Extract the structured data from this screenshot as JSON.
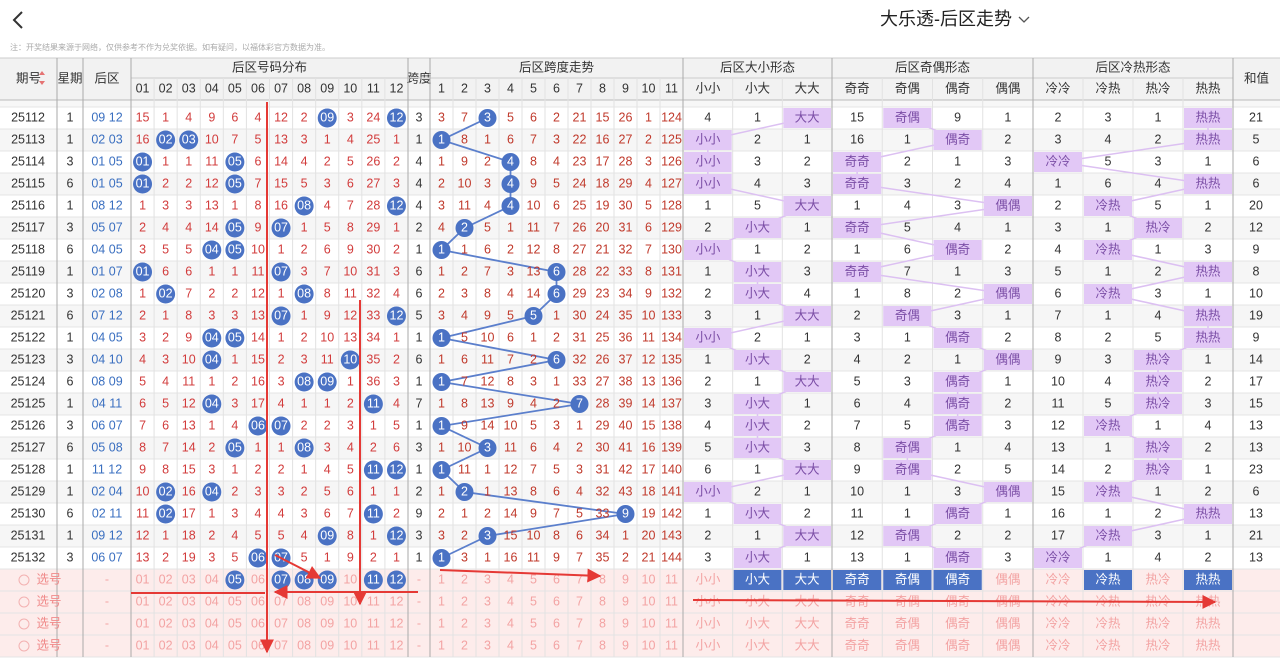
{
  "header": {
    "title": "大乐透-后区走势",
    "note": "注：开奖结果来源于网络，仅供参考不作为兑奖依据。如有疑问，以福体彩官方数据为准。"
  },
  "table": {
    "columns": {
      "issue": "期号",
      "week": "星期",
      "back": "后区",
      "dist": "后区号码分布",
      "span": "跨度",
      "trend": "后区跨度走势",
      "size": "后区大小形态",
      "parity": "后区奇偶形态",
      "heat": "后区冷热形态",
      "sum": "和值"
    },
    "dist_labels": [
      "01",
      "02",
      "03",
      "04",
      "05",
      "06",
      "07",
      "08",
      "09",
      "10",
      "11",
      "12"
    ],
    "trend_labels": [
      "1",
      "2",
      "3",
      "4",
      "5",
      "6",
      "7",
      "8",
      "9",
      "10",
      "11"
    ],
    "size_labels": [
      "小小",
      "小大",
      "大大"
    ],
    "parity_labels": [
      "奇奇",
      "奇偶",
      "偶奇",
      "偶偶"
    ],
    "heat_labels": [
      "冷冷",
      "冷热",
      "热冷",
      "热热"
    ],
    "rows": [
      {
        "issue": "25112",
        "week": "1",
        "back": "09 12",
        "dist": [
          15,
          1,
          4,
          9,
          6,
          4,
          12,
          2,
          "09",
          3,
          24,
          "12"
        ],
        "span": 3,
        "trend": [
          3,
          7,
          3,
          5,
          6,
          2,
          21,
          15,
          26,
          1,
          124
        ],
        "size": [
          4,
          1,
          "大大"
        ],
        "parity": [
          15,
          "奇偶",
          9,
          1
        ],
        "heat": [
          2,
          3,
          1,
          "热热"
        ],
        "sum": 21
      },
      {
        "issue": "25113",
        "week": "1",
        "back": "02 03",
        "dist": [
          16,
          "02",
          "03",
          10,
          7,
          5,
          13,
          3,
          1,
          4,
          25,
          1
        ],
        "span": 1,
        "trend": [
          1,
          8,
          1,
          6,
          7,
          3,
          22,
          16,
          27,
          2,
          125
        ],
        "size": [
          "小小",
          2,
          1
        ],
        "parity": [
          16,
          1,
          "偶奇",
          2
        ],
        "heat": [
          3,
          4,
          2,
          "热热"
        ],
        "sum": 5
      },
      {
        "issue": "25114",
        "week": "3",
        "back": "01 05",
        "dist": [
          "01",
          1,
          1,
          11,
          "05",
          6,
          14,
          4,
          2,
          5,
          26,
          2
        ],
        "span": 4,
        "trend": [
          1,
          9,
          2,
          4,
          8,
          4,
          23,
          17,
          28,
          3,
          126
        ],
        "size": [
          "小小",
          3,
          2
        ],
        "parity": [
          "奇奇",
          2,
          1,
          3
        ],
        "heat": [
          "冷冷",
          5,
          3,
          1
        ],
        "sum": 6
      },
      {
        "issue": "25115",
        "week": "6",
        "back": "01 05",
        "dist": [
          "01",
          2,
          2,
          12,
          "05",
          7,
          15,
          5,
          3,
          6,
          27,
          3
        ],
        "span": 4,
        "trend": [
          2,
          10,
          3,
          4,
          9,
          5,
          24,
          18,
          29,
          4,
          127
        ],
        "size": [
          "小小",
          4,
          3
        ],
        "parity": [
          "奇奇",
          3,
          2,
          4
        ],
        "heat": [
          1,
          6,
          4,
          "热热"
        ],
        "sum": 6
      },
      {
        "issue": "25116",
        "week": "1",
        "back": "08 12",
        "dist": [
          1,
          3,
          3,
          13,
          1,
          8,
          16,
          "08",
          4,
          7,
          28,
          "12"
        ],
        "span": 4,
        "trend": [
          3,
          11,
          4,
          4,
          10,
          6,
          25,
          19,
          30,
          5,
          128
        ],
        "size": [
          1,
          5,
          "大大"
        ],
        "parity": [
          1,
          4,
          3,
          "偶偶"
        ],
        "heat": [
          2,
          "冷热",
          5,
          1
        ],
        "sum": 20
      },
      {
        "issue": "25117",
        "week": "3",
        "back": "05 07",
        "dist": [
          2,
          4,
          4,
          14,
          "05",
          9,
          "07",
          1,
          5,
          8,
          29,
          1
        ],
        "span": 2,
        "trend": [
          4,
          2,
          5,
          1,
          11,
          7,
          26,
          20,
          31,
          6,
          129
        ],
        "size": [
          2,
          "小大",
          1
        ],
        "parity": [
          "奇奇",
          5,
          4,
          1
        ],
        "heat": [
          3,
          1,
          "热冷",
          2
        ],
        "sum": 12
      },
      {
        "issue": "25118",
        "week": "6",
        "back": "04 05",
        "dist": [
          3,
          5,
          5,
          "04",
          "05",
          10,
          1,
          2,
          6,
          9,
          30,
          2
        ],
        "span": 1,
        "trend": [
          1,
          1,
          6,
          2,
          12,
          8,
          27,
          21,
          32,
          7,
          130
        ],
        "size": [
          "小小",
          1,
          2
        ],
        "parity": [
          1,
          6,
          "偶奇",
          2
        ],
        "heat": [
          4,
          "冷热",
          1,
          3
        ],
        "sum": 9
      },
      {
        "issue": "25119",
        "week": "1",
        "back": "01 07",
        "dist": [
          "01",
          6,
          6,
          1,
          1,
          11,
          "07",
          3,
          7,
          10,
          31,
          3
        ],
        "span": 6,
        "trend": [
          1,
          2,
          7,
          3,
          13,
          6,
          28,
          22,
          33,
          8,
          131
        ],
        "size": [
          1,
          "小大",
          3
        ],
        "parity": [
          "奇奇",
          7,
          1,
          3
        ],
        "heat": [
          5,
          1,
          2,
          "热热"
        ],
        "sum": 8
      },
      {
        "issue": "25120",
        "week": "3",
        "back": "02 08",
        "dist": [
          1,
          "02",
          7,
          2,
          2,
          12,
          1,
          "08",
          8,
          11,
          32,
          4
        ],
        "span": 6,
        "trend": [
          2,
          3,
          8,
          4,
          14,
          6,
          29,
          23,
          34,
          9,
          132
        ],
        "size": [
          2,
          "小大",
          4
        ],
        "parity": [
          1,
          8,
          2,
          "偶偶"
        ],
        "heat": [
          6,
          "冷热",
          3,
          1
        ],
        "sum": 10
      },
      {
        "issue": "25121",
        "week": "6",
        "back": "07 12",
        "dist": [
          2,
          1,
          8,
          3,
          3,
          13,
          "07",
          1,
          9,
          12,
          33,
          "12"
        ],
        "span": 5,
        "trend": [
          3,
          4,
          9,
          5,
          5,
          1,
          30,
          24,
          35,
          10,
          133
        ],
        "size": [
          3,
          1,
          "大大"
        ],
        "parity": [
          2,
          "奇偶",
          3,
          1
        ],
        "heat": [
          7,
          1,
          4,
          "热热"
        ],
        "sum": 19
      },
      {
        "issue": "25122",
        "week": "1",
        "back": "04 05",
        "dist": [
          3,
          2,
          9,
          "04",
          "05",
          14,
          1,
          2,
          10,
          13,
          34,
          1
        ],
        "span": 1,
        "trend": [
          1,
          5,
          10,
          6,
          1,
          2,
          31,
          25,
          36,
          11,
          134
        ],
        "size": [
          "小小",
          2,
          1
        ],
        "parity": [
          3,
          1,
          "偶奇",
          2
        ],
        "heat": [
          8,
          2,
          5,
          "热热"
        ],
        "sum": 9
      },
      {
        "issue": "25123",
        "week": "3",
        "back": "04 10",
        "dist": [
          4,
          3,
          10,
          "04",
          1,
          15,
          2,
          3,
          11,
          "10",
          35,
          2
        ],
        "span": 6,
        "trend": [
          1,
          6,
          11,
          7,
          2,
          6,
          32,
          26,
          37,
          12,
          135
        ],
        "size": [
          1,
          "小大",
          2
        ],
        "parity": [
          4,
          2,
          1,
          "偶偶"
        ],
        "heat": [
          9,
          3,
          "热冷",
          1
        ],
        "sum": 14
      },
      {
        "issue": "25124",
        "week": "6",
        "back": "08 09",
        "dist": [
          5,
          4,
          11,
          1,
          2,
          16,
          3,
          "08",
          "09",
          1,
          36,
          3
        ],
        "span": 1,
        "trend": [
          1,
          7,
          12,
          8,
          3,
          1,
          33,
          27,
          38,
          13,
          136
        ],
        "size": [
          2,
          1,
          "大大"
        ],
        "parity": [
          5,
          3,
          "偶奇",
          1
        ],
        "heat": [
          10,
          4,
          "热冷",
          2
        ],
        "sum": 17
      },
      {
        "issue": "25125",
        "week": "1",
        "back": "04 11",
        "dist": [
          6,
          5,
          12,
          "04",
          3,
          17,
          4,
          1,
          1,
          2,
          "11",
          4
        ],
        "span": 7,
        "trend": [
          1,
          8,
          13,
          9,
          4,
          2,
          7,
          28,
          39,
          14,
          137
        ],
        "size": [
          3,
          "小大",
          1
        ],
        "parity": [
          6,
          4,
          "偶奇",
          2
        ],
        "heat": [
          11,
          5,
          "热冷",
          3
        ],
        "sum": 15
      },
      {
        "issue": "25126",
        "week": "3",
        "back": "06 07",
        "dist": [
          7,
          6,
          13,
          1,
          4,
          "06",
          "07",
          2,
          2,
          3,
          1,
          5
        ],
        "span": 1,
        "trend": [
          1,
          9,
          14,
          10,
          5,
          3,
          1,
          29,
          40,
          15,
          138
        ],
        "size": [
          4,
          "小大",
          2
        ],
        "parity": [
          7,
          5,
          "偶奇",
          3
        ],
        "heat": [
          12,
          "冷热",
          1,
          4
        ],
        "sum": 13
      },
      {
        "issue": "25127",
        "week": "6",
        "back": "05 08",
        "dist": [
          8,
          7,
          14,
          2,
          "05",
          1,
          1,
          "08",
          3,
          4,
          2,
          6
        ],
        "span": 3,
        "trend": [
          1,
          10,
          3,
          11,
          6,
          4,
          2,
          30,
          41,
          16,
          139
        ],
        "size": [
          5,
          "小大",
          3
        ],
        "parity": [
          8,
          "奇偶",
          1,
          4
        ],
        "heat": [
          13,
          1,
          "热冷",
          2
        ],
        "sum": 13
      },
      {
        "issue": "25128",
        "week": "1",
        "back": "11 12",
        "dist": [
          9,
          8,
          15,
          3,
          1,
          2,
          2,
          1,
          4,
          5,
          "11",
          "12"
        ],
        "span": 1,
        "trend": [
          1,
          11,
          1,
          12,
          7,
          5,
          3,
          31,
          42,
          17,
          140
        ],
        "size": [
          6,
          1,
          "大大"
        ],
        "parity": [
          9,
          "奇偶",
          2,
          5
        ],
        "heat": [
          14,
          2,
          "热冷",
          1
        ],
        "sum": 23
      },
      {
        "issue": "25129",
        "week": "1",
        "back": "02 04",
        "dist": [
          10,
          "02",
          16,
          "04",
          2,
          3,
          3,
          2,
          5,
          6,
          1,
          1
        ],
        "span": 2,
        "trend": [
          1,
          2,
          1,
          13,
          8,
          6,
          4,
          32,
          43,
          18,
          141
        ],
        "size": [
          "小小",
          2,
          1
        ],
        "parity": [
          10,
          1,
          3,
          "偶偶"
        ],
        "heat": [
          15,
          "冷热",
          1,
          2
        ],
        "sum": 6
      },
      {
        "issue": "25130",
        "week": "6",
        "back": "02 11",
        "dist": [
          11,
          "02",
          17,
          1,
          3,
          4,
          4,
          3,
          6,
          7,
          "11",
          2
        ],
        "span": 9,
        "trend": [
          2,
          1,
          2,
          14,
          9,
          7,
          5,
          33,
          9,
          19,
          142
        ],
        "size": [
          1,
          "小大",
          2
        ],
        "parity": [
          11,
          1,
          "偶奇",
          1
        ],
        "heat": [
          16,
          1,
          2,
          "热热"
        ],
        "sum": 13
      },
      {
        "issue": "25131",
        "week": "1",
        "back": "09 12",
        "dist": [
          12,
          1,
          18,
          2,
          4,
          5,
          5,
          4,
          "09",
          8,
          1,
          "12"
        ],
        "span": 3,
        "trend": [
          3,
          2,
          3,
          15,
          10,
          8,
          6,
          34,
          1,
          20,
          143
        ],
        "size": [
          2,
          1,
          "大大"
        ],
        "parity": [
          12,
          "奇偶",
          2,
          2
        ],
        "heat": [
          17,
          "冷热",
          3,
          1
        ],
        "sum": 21
      },
      {
        "issue": "25132",
        "week": "3",
        "back": "06 07",
        "dist": [
          13,
          2,
          19,
          3,
          5,
          "06",
          "07",
          5,
          1,
          9,
          2,
          1
        ],
        "span": 1,
        "trend": [
          1,
          3,
          1,
          16,
          11,
          9,
          7,
          35,
          2,
          21,
          144
        ],
        "size": [
          3,
          "小大",
          1
        ],
        "parity": [
          13,
          1,
          "偶奇",
          3
        ],
        "heat": [
          "冷冷",
          1,
          4,
          2
        ],
        "sum": 13
      }
    ]
  },
  "picker": {
    "label": "选号",
    "dash": "-",
    "rows": 4,
    "selected_numbers": [
      "05",
      "07",
      "08",
      "09",
      "11",
      "12"
    ],
    "selected_forms": [
      "小大",
      "大大",
      "奇奇",
      "奇偶",
      "偶奇",
      "冷热",
      "热热"
    ]
  }
}
